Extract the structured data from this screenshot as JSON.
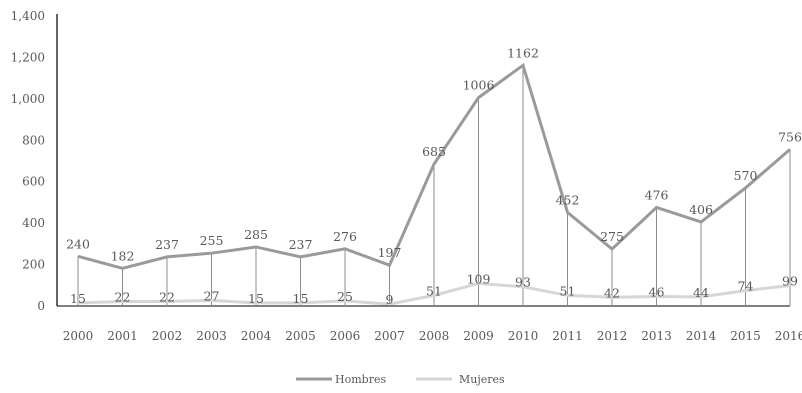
{
  "chart_data": {
    "type": "line",
    "title": "",
    "xlabel": "",
    "ylabel": "",
    "categories": [
      "2000",
      "2001",
      "2002",
      "2003",
      "2004",
      "2005",
      "2006",
      "2007",
      "2008",
      "2009",
      "2010",
      "2011",
      "2012",
      "2013",
      "2014",
      "2015",
      "2016"
    ],
    "ylim": [
      0,
      1400
    ],
    "yticks": [
      0,
      200,
      400,
      600,
      800,
      1000,
      1200,
      1400
    ],
    "ytick_labels": [
      "0",
      "200",
      "400",
      "600",
      "800",
      "1,000",
      "1,200",
      "1,400"
    ],
    "drop_lines": true,
    "grid": false,
    "legend": "bottom-center",
    "series": [
      {
        "name": "Hombres",
        "color": "#9a9a9a",
        "values": [
          240,
          182,
          237,
          255,
          285,
          237,
          276,
          197,
          685,
          1006,
          1162,
          452,
          275,
          476,
          406,
          570,
          756
        ]
      },
      {
        "name": "Mujeres",
        "color": "#d6d6d6",
        "values": [
          15,
          22,
          22,
          27,
          15,
          15,
          25,
          9,
          51,
          109,
          93,
          51,
          42,
          46,
          44,
          74,
          99
        ]
      }
    ]
  }
}
